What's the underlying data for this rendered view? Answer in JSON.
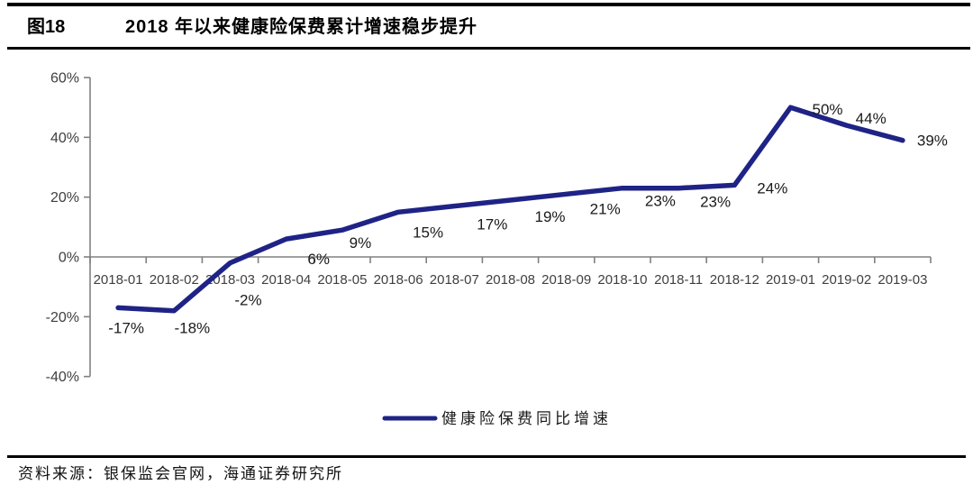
{
  "figure": {
    "label": "图18",
    "title": "2018 年以来健康险保费累计增速稳步提升"
  },
  "chart_data": {
    "type": "line",
    "title": "2018 年以来健康险保费累计增速稳步提升",
    "categories": [
      "2018-01",
      "2018-02",
      "2018-03",
      "2018-04",
      "2018-05",
      "2018-06",
      "2018-07",
      "2018-08",
      "2018-09",
      "2018-10",
      "2018-11",
      "2018-12",
      "2019-01",
      "2019-02",
      "2019-03"
    ],
    "series": [
      {
        "name": "健康险保费同比增速",
        "color": "#1F2386",
        "values": [
          -17,
          -18,
          -2,
          6,
          9,
          15,
          17,
          19,
          21,
          23,
          23,
          24,
          50,
          44,
          39
        ]
      }
    ],
    "data_labels": [
      "-17%",
      "-18%",
      "-2%",
      "6%",
      "9%",
      "15%",
      "17%",
      "19%",
      "21%",
      "23%",
      "23%",
      "24%",
      "50%",
      "44%",
      "39%"
    ],
    "yticks": [
      60,
      40,
      20,
      0,
      -20,
      -40
    ],
    "ytick_labels": [
      "60%",
      "40%",
      "20%",
      "0%",
      "-20%",
      "-40%"
    ],
    "ylim": [
      -40,
      60
    ],
    "value_suffix": "%",
    "grid": false,
    "legend_position": "bottom-center",
    "axis_color": "#808080",
    "tick_label_color": "#3F3F3F",
    "data_label_color": "#1a1a1a"
  },
  "legend": {
    "label": "健康险保费同比增速"
  },
  "source": {
    "text": "资料来源：银保监会官网，海通证券研究所"
  }
}
